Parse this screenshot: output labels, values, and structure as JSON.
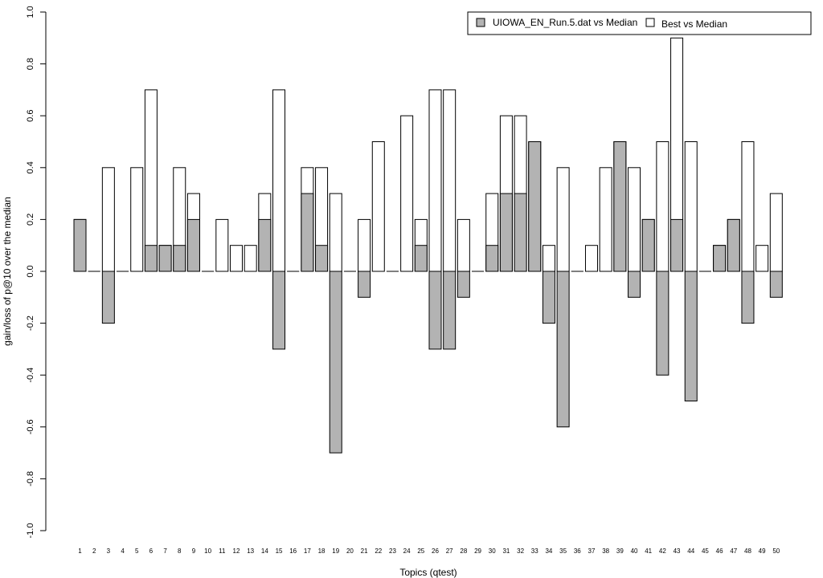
{
  "chart_data": {
    "type": "bar",
    "xlabel": "Topics (qtest)",
    "ylabel": "gain/loss of p@10 over the median",
    "ylim": [
      -1.0,
      1.0
    ],
    "yticks": [
      "-1.0",
      "-0.8",
      "-0.6",
      "-0.4",
      "-0.2",
      "0.0",
      "0.2",
      "0.4",
      "0.6",
      "0.8",
      "1.0"
    ],
    "categories": [
      "1",
      "2",
      "3",
      "4",
      "5",
      "6",
      "7",
      "8",
      "9",
      "10",
      "11",
      "12",
      "13",
      "14",
      "15",
      "16",
      "17",
      "18",
      "19",
      "20",
      "21",
      "22",
      "23",
      "24",
      "25",
      "26",
      "27",
      "28",
      "29",
      "30",
      "31",
      "32",
      "33",
      "34",
      "35",
      "36",
      "37",
      "38",
      "39",
      "40",
      "41",
      "42",
      "43",
      "44",
      "45",
      "46",
      "47",
      "48",
      "49",
      "50"
    ],
    "series": [
      {
        "name": "Best vs Median",
        "color": "#ffffff",
        "values": [
          0.2,
          0,
          0.4,
          0,
          0.4,
          0.7,
          0.1,
          0.4,
          0.3,
          0,
          0.2,
          0.1,
          0.1,
          0.3,
          0.7,
          0,
          0.4,
          0.4,
          0.3,
          0,
          0.2,
          0.5,
          0,
          0.6,
          0.2,
          0.7,
          0.7,
          0.2,
          0,
          0.3,
          0.6,
          0.6,
          0.5,
          0.1,
          0.4,
          0,
          0.1,
          0.4,
          0.5,
          0.4,
          0.2,
          0.5,
          0.9,
          0.5,
          0,
          0.1,
          0.2,
          0.5,
          0.1,
          0.3
        ]
      },
      {
        "name": "UIOWA_EN_Run.5.dat vs Median",
        "color": "#b3b3b3",
        "values": [
          0.2,
          0,
          -0.2,
          0,
          0,
          0.1,
          0.1,
          0.1,
          0.2,
          0,
          0,
          0,
          0,
          0.2,
          -0.3,
          0,
          0.3,
          0.1,
          -0.7,
          0,
          -0.1,
          0,
          0,
          0,
          0.1,
          -0.3,
          -0.3,
          -0.1,
          0,
          0.1,
          0.3,
          0.3,
          0.5,
          -0.2,
          -0.6,
          0,
          0,
          0,
          0.5,
          -0.1,
          0.2,
          -0.4,
          0.2,
          -0.5,
          0,
          0.1,
          0.2,
          -0.2,
          0,
          -0.1
        ]
      }
    ],
    "legend": {
      "placement": "top-right",
      "entries": [
        "UIOWA_EN_Run.5.dat vs Median",
        "Best vs Median"
      ]
    }
  }
}
